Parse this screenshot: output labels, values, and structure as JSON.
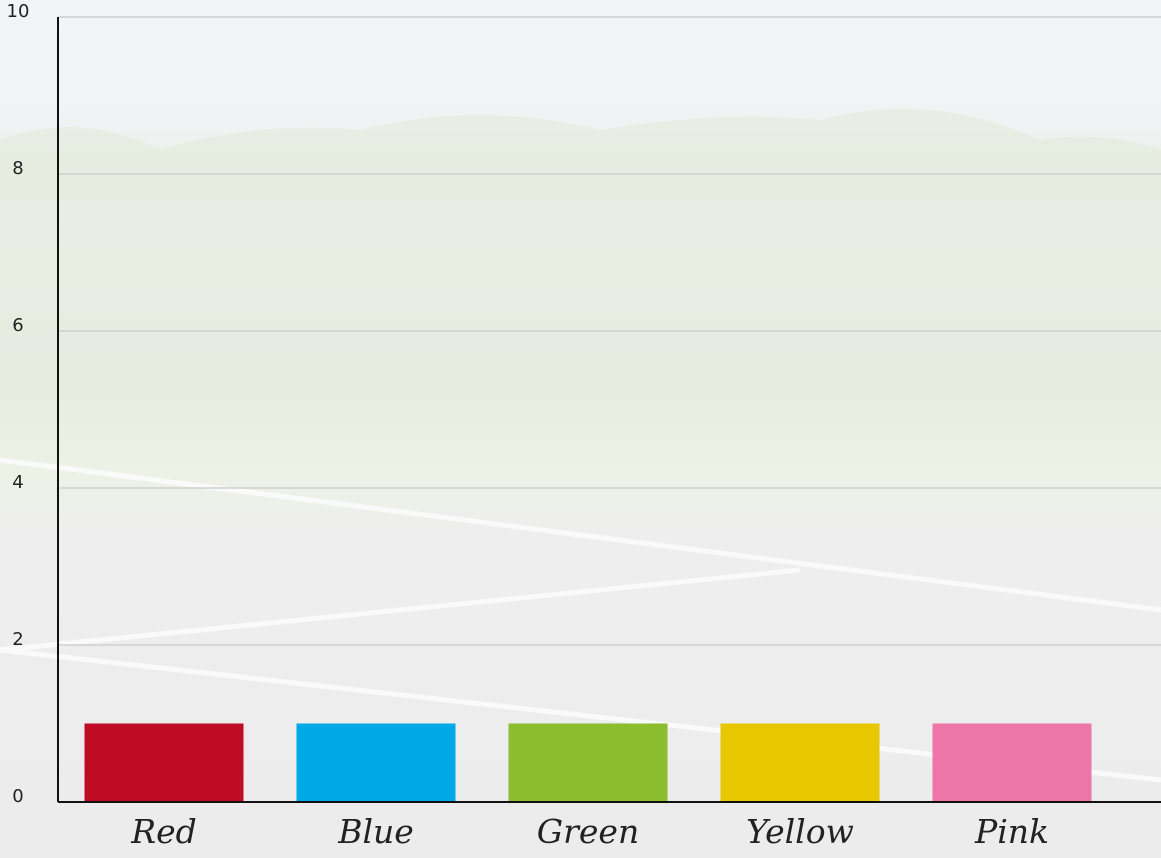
{
  "chart_data": {
    "type": "bar",
    "categories": [
      "Red",
      "Blue",
      "Green",
      "Yellow",
      "Pink"
    ],
    "values": [
      1,
      1,
      1,
      1,
      1
    ],
    "colors": [
      "#c00b24",
      "#00a8e6",
      "#8bbd2f",
      "#e6c700",
      "#ed75a8"
    ],
    "ylim": [
      0,
      10
    ],
    "yticks": [
      0,
      2,
      4,
      6,
      8,
      10
    ],
    "grid": true
  }
}
